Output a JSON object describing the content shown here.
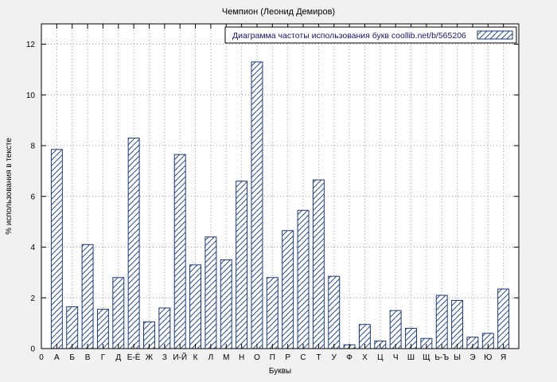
{
  "chart_data": {
    "type": "bar",
    "title": "Чемпион (Леонид Демиров)",
    "legend": "Диаграмма частоты использования букв coollib.net/b/565206",
    "legend_position": "top-right",
    "xlabel": "Буквы",
    "ylabel": "% использования в тексте",
    "origin_label": "0",
    "ylim": [
      0,
      12.8
    ],
    "yticks": [
      0,
      2,
      4,
      6,
      8,
      10,
      12
    ],
    "grid": true,
    "categories": [
      "А",
      "Б",
      "В",
      "Г",
      "Д",
      "Е-Ё",
      "Ж",
      "З",
      "И-Й",
      "К",
      "Л",
      "М",
      "Н",
      "О",
      "П",
      "Р",
      "С",
      "Т",
      "У",
      "Ф",
      "Х",
      "Ц",
      "Ч",
      "Ш",
      "Щ",
      "Ь-Ъ",
      "Ы",
      "Э",
      "Ю",
      "Я"
    ],
    "values": [
      7.85,
      1.65,
      4.1,
      1.55,
      2.8,
      8.3,
      1.05,
      1.6,
      7.65,
      3.3,
      4.4,
      3.5,
      6.6,
      11.3,
      2.8,
      4.65,
      5.45,
      6.65,
      2.85,
      0.15,
      0.95,
      0.3,
      1.5,
      0.8,
      0.4,
      2.1,
      1.9,
      0.45,
      0.6,
      2.35
    ],
    "colors": {
      "bar_outline": "#1a3a7e",
      "bar_hatch": "#2a4a8e",
      "legend_text": "#151570",
      "figure_background": "#f1f1f1",
      "plot_background": "#ffffff"
    }
  }
}
